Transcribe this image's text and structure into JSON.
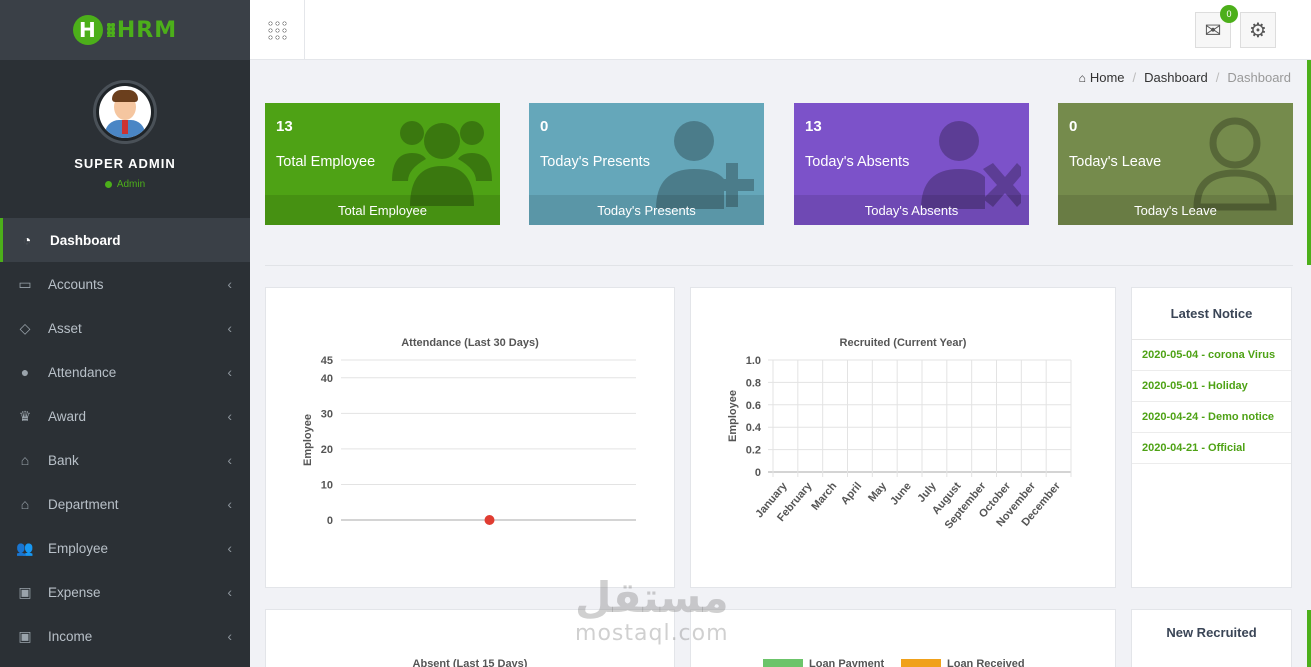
{
  "app": {
    "logo_text": "HRM",
    "logo_letter": "H"
  },
  "profile": {
    "name": "SUPER ADMIN",
    "role": "Admin"
  },
  "sidebar": {
    "items": [
      {
        "label": "Dashboard",
        "icon": "dashboard-icon"
      },
      {
        "label": "Accounts",
        "icon": "briefcase-icon"
      },
      {
        "label": "Asset",
        "icon": "diamond-icon"
      },
      {
        "label": "Attendance",
        "icon": "user-icon"
      },
      {
        "label": "Award",
        "icon": "trophy-icon"
      },
      {
        "label": "Bank",
        "icon": "bank-icon"
      },
      {
        "label": "Department",
        "icon": "bank-icon"
      },
      {
        "label": "Employee",
        "icon": "users-icon"
      },
      {
        "label": "Expense",
        "icon": "money-icon"
      },
      {
        "label": "Income",
        "icon": "money-icon"
      }
    ]
  },
  "topbar": {
    "mail_badge": "0"
  },
  "breadcrumb": {
    "home": "Home",
    "dashboard": "Dashboard",
    "current": "Dashboard"
  },
  "cards": [
    {
      "value": "13",
      "title": "Total Employee",
      "footer": "Total Employee",
      "color": "#4ea215"
    },
    {
      "value": "0",
      "title": "Today's Presents",
      "footer": "Today's Presents",
      "color": "#65a7ba"
    },
    {
      "value": "13",
      "title": "Today's Absents",
      "footer": "Today's Absents",
      "color": "#7c52c9"
    },
    {
      "value": "0",
      "title": "Today's Leave",
      "footer": "Today's Leave",
      "color": "#758b4c"
    }
  ],
  "notice": {
    "title": "Latest Notice",
    "items": [
      "2020-05-04 - corona Virus",
      "2020-05-01 - Holiday",
      "2020-04-24 - Demo notice",
      "2020-04-21 - Official"
    ]
  },
  "recruited_panel": {
    "title": "New Recruited"
  },
  "chart_data": [
    {
      "type": "line",
      "title": "Attendance (Last 30 Days)",
      "ylabel": "Employee",
      "xlabel": "",
      "ylim": [
        0,
        45
      ],
      "yticks": [
        0,
        10,
        20,
        30,
        40,
        45
      ],
      "grid": true,
      "series": [
        {
          "values": [
            0
          ],
          "color": "#e03c31"
        }
      ]
    },
    {
      "type": "line",
      "title": "Recruited (Current Year)",
      "ylabel": "Employee",
      "xlabel": "",
      "ylim": [
        0,
        1.0
      ],
      "yticks": [
        0,
        0.2,
        0.4,
        0.6,
        0.8,
        1.0
      ],
      "categories": [
        "January",
        "February",
        "March",
        "April",
        "May",
        "June",
        "July",
        "August",
        "September",
        "October",
        "November",
        "December"
      ],
      "grid": true,
      "series": []
    },
    {
      "type": "bar",
      "title": "Absent (Last 15 Days)"
    },
    {
      "type": "bar",
      "legend": [
        {
          "name": "Loan Payment",
          "color": "#6cc46a"
        },
        {
          "name": "Loan Received",
          "color": "#f0a11b"
        }
      ]
    }
  ],
  "watermark": {
    "arabic": "مستقل",
    "latin": "mostaql.com"
  }
}
